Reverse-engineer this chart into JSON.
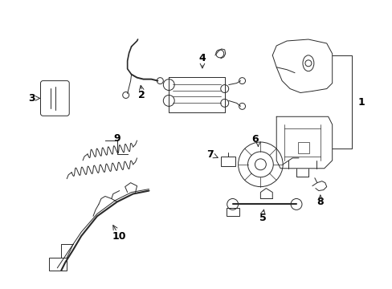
{
  "background_color": "#ffffff",
  "line_color": "#2a2a2a",
  "label_color": "#000000",
  "fig_width": 4.89,
  "fig_height": 3.6,
  "dpi": 100,
  "font_size": 9,
  "lw": 0.7
}
